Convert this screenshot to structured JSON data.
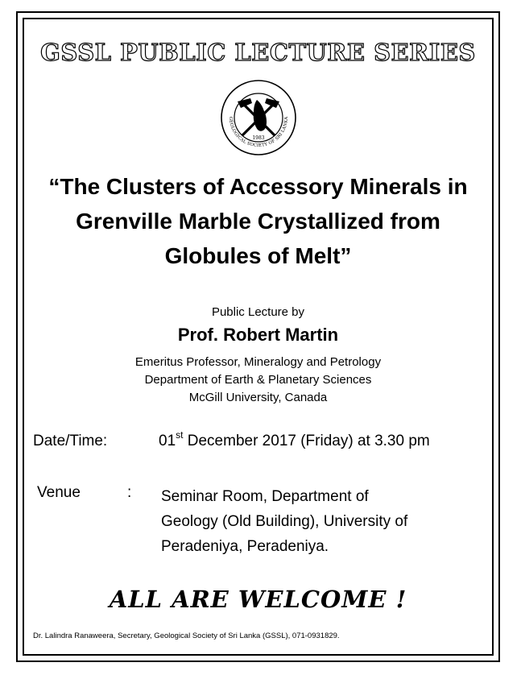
{
  "series_title": "GSSL PUBLIC LECTURE SERIES",
  "logo": {
    "icon": "geological-society-of-sri-lanka-seal",
    "year": "1983",
    "ring_text": "GEOLOGICAL SOCIETY OF SRI LANKA"
  },
  "lecture_title": [
    "“The Clusters of Accessory Minerals in",
    "Grenville Marble Crystallized from",
    "Globules of Melt”"
  ],
  "by_line": "Public Lecture by",
  "speaker": {
    "name": "Prof. Robert Martin",
    "affiliation": [
      "Emeritus Professor, Mineralogy and Petrology",
      "Department of Earth & Planetary Sciences",
      "McGill University, Canada"
    ]
  },
  "datetime": {
    "label": "Date/Time:",
    "day": "01",
    "suffix": "st",
    "rest": " December 2017 (Friday) at 3.30 pm"
  },
  "venue": {
    "label": "Venue",
    "colon": ":",
    "lines": [
      "Seminar Room, Department of",
      "Geology (Old Building), University of",
      "Peradeniya, Peradeniya."
    ]
  },
  "welcome": "ALL ARE WELCOME !",
  "footer": "Dr. Lalindra Ranaweera, Secretary, Geological Society of Sri Lanka (GSSL), 071-0931829."
}
